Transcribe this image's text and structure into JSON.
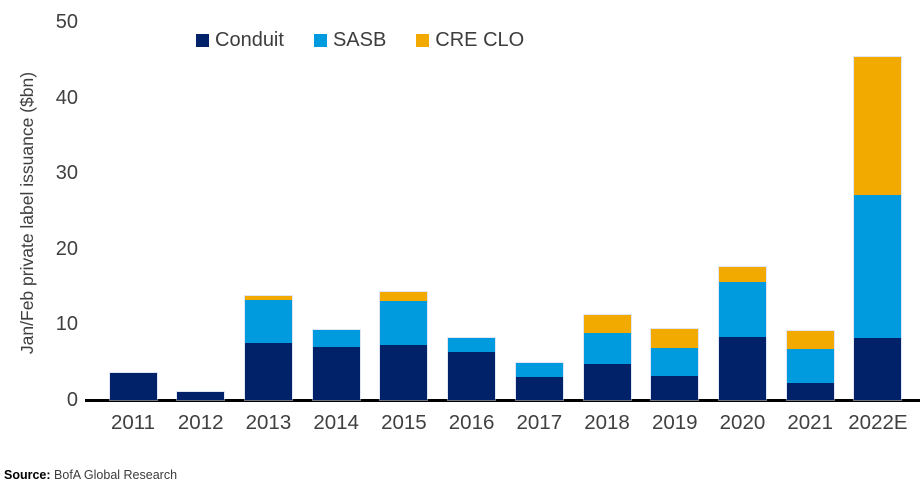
{
  "source": {
    "prefix": "Source:",
    "text": "BofA Global Research"
  },
  "legend": [
    {
      "label": "Conduit",
      "color": "#012169"
    },
    {
      "label": "SASB",
      "color": "#009ade"
    },
    {
      "label": "CRE CLO",
      "color": "#f2a900"
    }
  ],
  "chart_data": {
    "type": "bar",
    "stacked": true,
    "title": "",
    "xlabel": "",
    "ylabel": "Jan/Feb private label issuance ($bn)",
    "ylim": [
      0,
      50
    ],
    "yticks": [
      0,
      10,
      20,
      30,
      40,
      50
    ],
    "grid": false,
    "legend_position": "top",
    "categories": [
      "2011",
      "2012",
      "2013",
      "2014",
      "2015",
      "2016",
      "2017",
      "2018",
      "2019",
      "2020",
      "2021",
      "2022E"
    ],
    "series": [
      {
        "name": "Conduit",
        "color": "#012169",
        "values": [
          3.6,
          1.1,
          7.6,
          7.0,
          7.3,
          6.4,
          3.0,
          4.7,
          3.2,
          8.3,
          2.2,
          8.2
        ]
      },
      {
        "name": "SASB",
        "color": "#009ade",
        "values": [
          0,
          0,
          5.6,
          2.2,
          5.8,
          1.8,
          1.9,
          4.2,
          3.7,
          7.3,
          4.5,
          18.9
        ]
      },
      {
        "name": "CRE CLO",
        "color": "#f2a900",
        "values": [
          0,
          0,
          0.5,
          0,
          1.2,
          0,
          0,
          2.3,
          2.5,
          2.0,
          2.4,
          18.3
        ]
      }
    ],
    "totals": [
      3.6,
      1.1,
      13.7,
      9.2,
      14.3,
      8.2,
      4.9,
      11.2,
      9.4,
      17.6,
      9.1,
      45.4
    ]
  }
}
